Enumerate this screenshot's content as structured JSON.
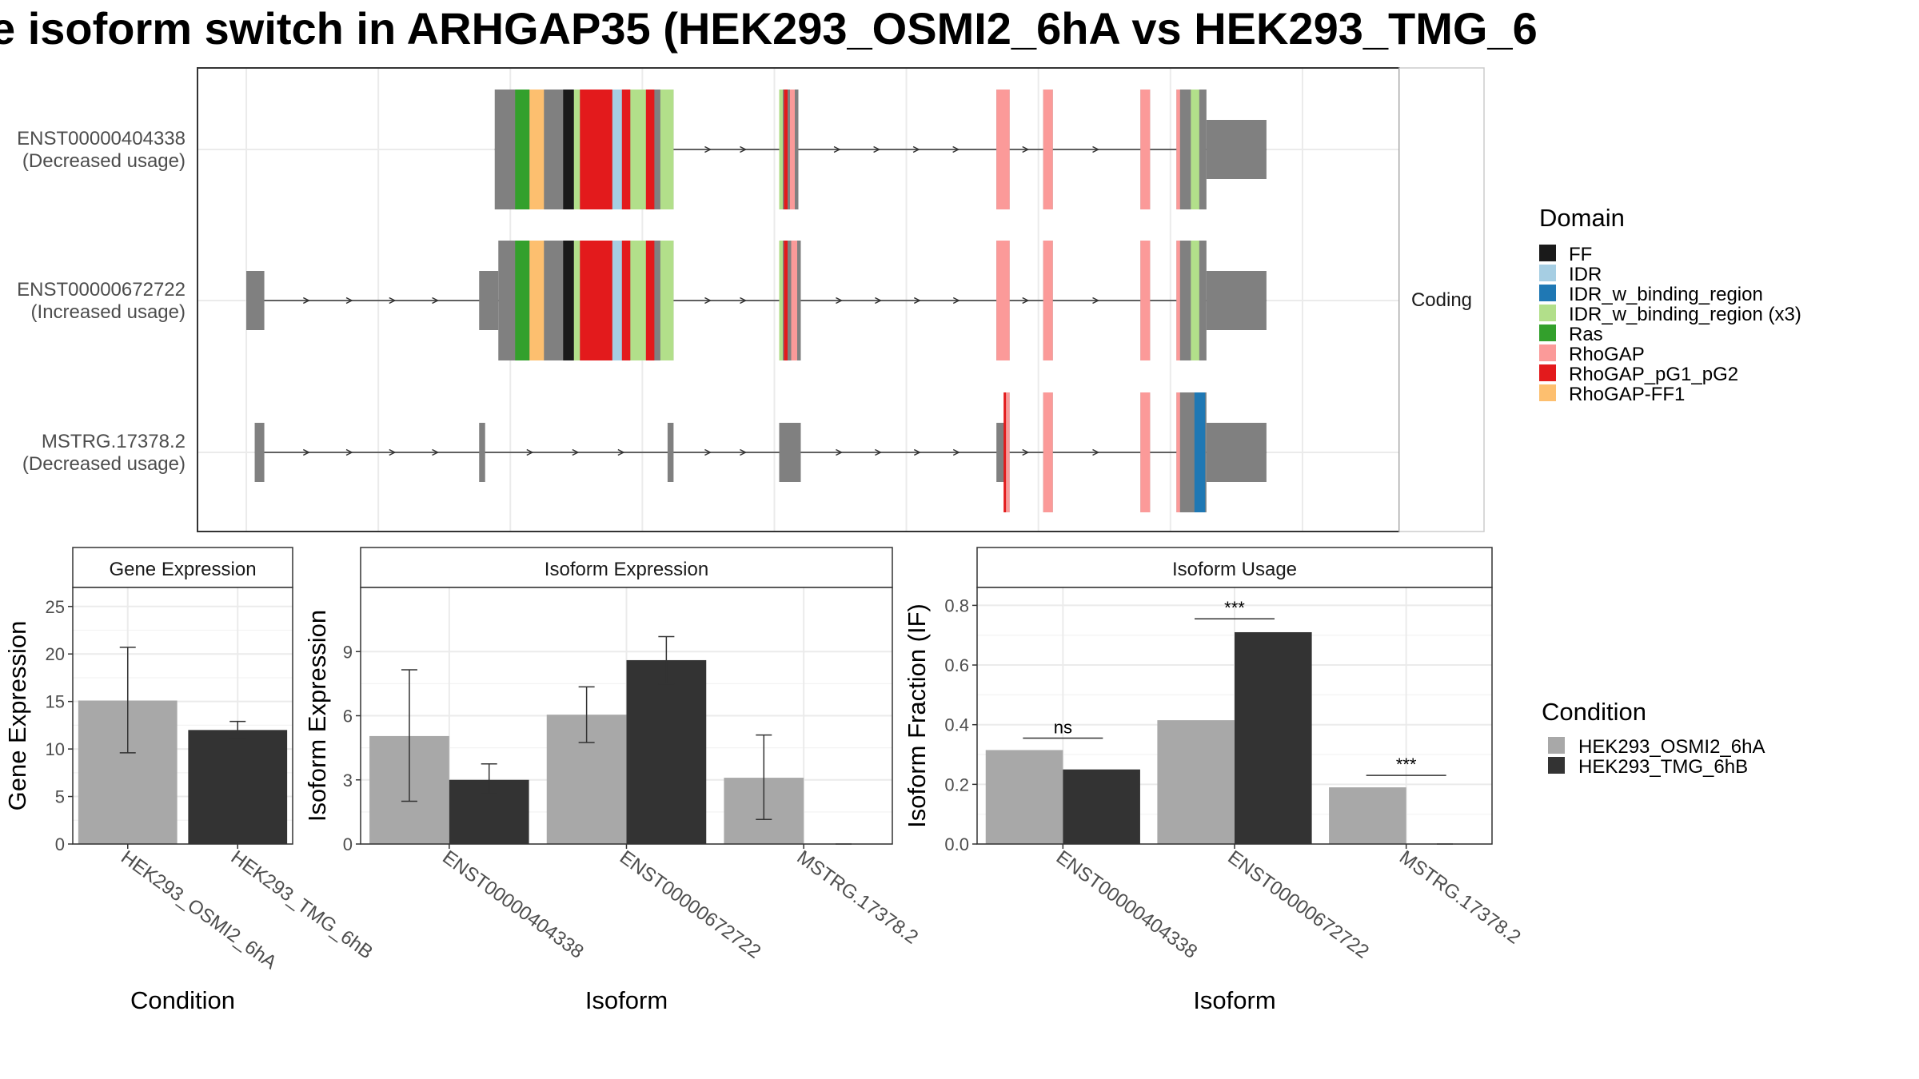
{
  "figure": {
    "title": "e isoform switch in ARHGAP35 (HEK293_OSMI2_6hA vs HEK293_TMG_6",
    "colors": {
      "background": "#ffffff",
      "exon": "#808080",
      "panel_border": "#333333",
      "grid": "#ebebeb",
      "strip_fill": "#ffffff"
    }
  },
  "chart_data": [
    {
      "type": "gene-structure",
      "strip_label": "Coding",
      "x_range": [
        0,
        1000
      ],
      "grid_x": [
        40,
        150,
        260,
        370,
        480,
        590,
        700,
        810,
        920
      ],
      "domain_legend": {
        "title": "Domain",
        "entries": [
          {
            "label": "FF",
            "color": "#1a1a1a"
          },
          {
            "label": "IDR",
            "color": "#a6cee3"
          },
          {
            "label": "IDR_w_binding_region",
            "color": "#1f78b4"
          },
          {
            "label": "IDR_w_binding_region (x3)",
            "color": "#b2df8a"
          },
          {
            "label": "Ras",
            "color": "#33a02c"
          },
          {
            "label": "RhoGAP",
            "color": "#fb9a99"
          },
          {
            "label": "RhoGAP_pG1_pG2",
            "color": "#e31a1c"
          },
          {
            "label": "RhoGAP-FF1",
            "color": "#fdbf6f"
          }
        ]
      },
      "transcripts": [
        {
          "id": "ENST00000404338",
          "usage": "(Decreased usage)",
          "start": 247,
          "end": 890,
          "exons": [
            {
              "s": 247,
              "e": 396,
              "h": "tall"
            },
            {
              "s": 484,
              "e": 500,
              "h": "tall"
            },
            {
              "s": 665,
              "e": 676,
              "h": "tall"
            },
            {
              "s": 704,
              "e": 712,
              "h": "tall"
            },
            {
              "s": 785,
              "e": 793,
              "h": "tall"
            },
            {
              "s": 815,
              "e": 840,
              "h": "tall"
            },
            {
              "s": 840,
              "e": 890,
              "h": "short"
            }
          ],
          "domains": [
            {
              "s": 264,
              "e": 276,
              "d": "Ras"
            },
            {
              "s": 276,
              "e": 288,
              "d": "RhoGAP-FF1"
            },
            {
              "s": 304,
              "e": 313,
              "d": "FF"
            },
            {
              "s": 313,
              "e": 318,
              "d": "IDR_w_binding_region (x3)"
            },
            {
              "s": 318,
              "e": 345,
              "d": "RhoGAP_pG1_pG2"
            },
            {
              "s": 345,
              "e": 353,
              "d": "IDR"
            },
            {
              "s": 353,
              "e": 360,
              "d": "RhoGAP_pG1_pG2"
            },
            {
              "s": 360,
              "e": 373,
              "d": "IDR_w_binding_region (x3)"
            },
            {
              "s": 373,
              "e": 380,
              "d": "RhoGAP_pG1_pG2"
            },
            {
              "s": 385,
              "e": 396,
              "d": "IDR_w_binding_region (x3)"
            },
            {
              "s": 484,
              "e": 487,
              "d": "IDR_w_binding_region (x3)"
            },
            {
              "s": 488,
              "e": 491,
              "d": "RhoGAP_pG1_pG2"
            },
            {
              "s": 493,
              "e": 497,
              "d": "RhoGAP"
            },
            {
              "s": 665,
              "e": 676,
              "d": "RhoGAP"
            },
            {
              "s": 704,
              "e": 712,
              "d": "RhoGAP"
            },
            {
              "s": 785,
              "e": 793,
              "d": "RhoGAP"
            },
            {
              "s": 815,
              "e": 818,
              "d": "RhoGAP"
            },
            {
              "s": 827,
              "e": 834,
              "d": "IDR_w_binding_region (x3)"
            }
          ]
        },
        {
          "id": "ENST00000672722",
          "usage": "(Increased usage)",
          "start": 40,
          "end": 890,
          "exons": [
            {
              "s": 40,
              "e": 55,
              "h": "short"
            },
            {
              "s": 234,
              "e": 250,
              "h": "short"
            },
            {
              "s": 250,
              "e": 396,
              "h": "tall"
            },
            {
              "s": 484,
              "e": 502,
              "h": "tall"
            },
            {
              "s": 665,
              "e": 676,
              "h": "tall"
            },
            {
              "s": 704,
              "e": 712,
              "h": "tall"
            },
            {
              "s": 785,
              "e": 793,
              "h": "tall"
            },
            {
              "s": 815,
              "e": 840,
              "h": "tall"
            },
            {
              "s": 840,
              "e": 890,
              "h": "short"
            }
          ],
          "domains": [
            {
              "s": 264,
              "e": 276,
              "d": "Ras"
            },
            {
              "s": 276,
              "e": 288,
              "d": "RhoGAP-FF1"
            },
            {
              "s": 304,
              "e": 313,
              "d": "FF"
            },
            {
              "s": 313,
              "e": 318,
              "d": "IDR_w_binding_region (x3)"
            },
            {
              "s": 318,
              "e": 345,
              "d": "RhoGAP_pG1_pG2"
            },
            {
              "s": 345,
              "e": 353,
              "d": "IDR"
            },
            {
              "s": 353,
              "e": 360,
              "d": "RhoGAP_pG1_pG2"
            },
            {
              "s": 360,
              "e": 373,
              "d": "IDR_w_binding_region (x3)"
            },
            {
              "s": 373,
              "e": 380,
              "d": "RhoGAP_pG1_pG2"
            },
            {
              "s": 385,
              "e": 396,
              "d": "IDR_w_binding_region (x3)"
            },
            {
              "s": 484,
              "e": 487,
              "d": "IDR_w_binding_region (x3)"
            },
            {
              "s": 488,
              "e": 491,
              "d": "RhoGAP_pG1_pG2"
            },
            {
              "s": 494,
              "e": 499,
              "d": "RhoGAP"
            },
            {
              "s": 665,
              "e": 676,
              "d": "RhoGAP"
            },
            {
              "s": 704,
              "e": 712,
              "d": "RhoGAP"
            },
            {
              "s": 785,
              "e": 793,
              "d": "RhoGAP"
            },
            {
              "s": 815,
              "e": 818,
              "d": "RhoGAP"
            },
            {
              "s": 827,
              "e": 834,
              "d": "IDR_w_binding_region (x3)"
            }
          ]
        },
        {
          "id": "MSTRG.17378.2",
          "usage": "(Decreased usage)",
          "start": 47,
          "end": 890,
          "exons": [
            {
              "s": 47,
              "e": 55,
              "h": "short"
            },
            {
              "s": 234,
              "e": 239,
              "h": "short"
            },
            {
              "s": 391,
              "e": 396,
              "h": "short"
            },
            {
              "s": 484,
              "e": 502,
              "h": "short"
            },
            {
              "s": 665,
              "e": 672,
              "h": "short"
            },
            {
              "s": 672,
              "e": 676,
              "h": "tall"
            },
            {
              "s": 704,
              "e": 712,
              "h": "tall"
            },
            {
              "s": 785,
              "e": 793,
              "h": "tall"
            },
            {
              "s": 815,
              "e": 840,
              "h": "tall"
            },
            {
              "s": 840,
              "e": 890,
              "h": "short"
            }
          ],
          "domains": [
            {
              "s": 671,
              "e": 673,
              "d": "RhoGAP_pG1_pG2"
            },
            {
              "s": 673,
              "e": 676,
              "d": "RhoGAP"
            },
            {
              "s": 704,
              "e": 712,
              "d": "RhoGAP"
            },
            {
              "s": 785,
              "e": 793,
              "d": "RhoGAP"
            },
            {
              "s": 815,
              "e": 818,
              "d": "RhoGAP"
            },
            {
              "s": 830,
              "e": 839,
              "d": "IDR_w_binding_region"
            }
          ]
        }
      ]
    },
    {
      "type": "bar",
      "strip_label": "Gene Expression",
      "xlabel": "Condition",
      "ylabel": "Gene Expression",
      "ylim": [
        0,
        27
      ],
      "yticks": [
        0,
        5,
        10,
        15,
        20,
        25
      ],
      "categories": [
        "HEK293_OSMI2_6hA",
        "HEK293_TMG_6hB"
      ],
      "values": [
        15.1,
        12.0
      ],
      "error": [
        [
          9.6,
          20.7
        ],
        [
          11.1,
          12.9
        ]
      ],
      "colors": [
        "#a8a8a8",
        "#333333"
      ]
    },
    {
      "type": "bar",
      "strip_label": "Isoform Expression",
      "xlabel": "Isoform",
      "ylabel": "Isoform Expression",
      "ylim": [
        0,
        12
      ],
      "yticks": [
        0,
        3,
        6,
        9
      ],
      "categories": [
        "ENST00000404338",
        "ENST00000672722",
        "MSTRG.17378.2"
      ],
      "series": [
        {
          "name": "HEK293_OSMI2_6hA",
          "color": "#a8a8a8",
          "values": [
            5.05,
            6.05,
            3.1
          ],
          "error": [
            [
              2.0,
              8.15
            ],
            [
              4.75,
              7.35
            ],
            [
              1.15,
              5.1
            ]
          ]
        },
        {
          "name": "HEK293_TMG_6hB",
          "color": "#333333",
          "values": [
            3.0,
            8.6,
            0.0
          ],
          "error": [
            [
              2.35,
              3.75
            ],
            [
              7.5,
              9.7
            ],
            [
              0.0,
              0.0
            ]
          ]
        }
      ]
    },
    {
      "type": "bar",
      "strip_label": "Isoform Usage",
      "xlabel": "Isoform",
      "ylabel": "Isoform Fraction (IF)",
      "ylim": [
        0,
        0.86
      ],
      "yticks": [
        0.0,
        0.2,
        0.4,
        0.6,
        0.8
      ],
      "ytick_labels": [
        "0.0",
        "0.2",
        "0.4",
        "0.6",
        "0.8"
      ],
      "categories": [
        "ENST00000404338",
        "ENST00000672722",
        "MSTRG.17378.2"
      ],
      "series": [
        {
          "name": "HEK293_OSMI2_6hA",
          "color": "#a8a8a8",
          "values": [
            0.315,
            0.415,
            0.19
          ]
        },
        {
          "name": "HEK293_TMG_6hB",
          "color": "#333333",
          "values": [
            0.25,
            0.71,
            0.0
          ]
        }
      ],
      "significance": [
        {
          "label": "ns",
          "y": 0.355
        },
        {
          "label": "***",
          "y": 0.755
        },
        {
          "label": "***",
          "y": 0.23
        }
      ]
    }
  ],
  "condition_legend": {
    "title": "Condition",
    "entries": [
      {
        "label": "HEK293_OSMI2_6hA",
        "color": "#a8a8a8"
      },
      {
        "label": "HEK293_TMG_6hB",
        "color": "#333333"
      }
    ]
  }
}
